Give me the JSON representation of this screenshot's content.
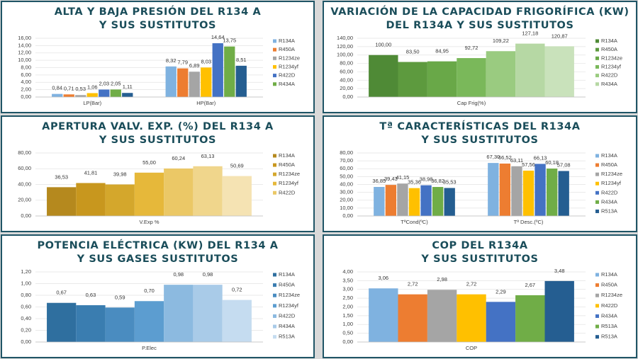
{
  "chart_data": [
    {
      "type": "bar",
      "title": [
        "ALTA Y BAJA PRESIÓN DEL R134 A",
        "Y SUS SUSTITUTOS"
      ],
      "categories": [
        "LP(Bar)",
        "HP(Bar)"
      ],
      "ylim": [
        0,
        16
      ],
      "yticks": [
        {
          "value": 0,
          "label": "0,00"
        },
        {
          "value": 2,
          "label": "2,00"
        },
        {
          "value": 4,
          "label": "4,00"
        },
        {
          "value": 6,
          "label": "6,00"
        },
        {
          "value": 8,
          "label": "8,00"
        },
        {
          "value": 10,
          "label": "10,00"
        },
        {
          "value": 12,
          "label": "12,00"
        },
        {
          "value": 14,
          "label": "14,00"
        },
        {
          "value": 16,
          "label": "16,00"
        }
      ],
      "grid": true,
      "series": [
        {
          "name": "R134A",
          "color": "#7fb2e0",
          "values": [
            0.84,
            8.32
          ],
          "value_labels": [
            "0,84",
            "8,32"
          ]
        },
        {
          "name": "R450A",
          "color": "#ed7d31",
          "values": [
            0.71,
            7.79
          ],
          "value_labels": [
            "0,71",
            "7,79"
          ]
        },
        {
          "name": "R1234ze",
          "color": "#a5a5a5",
          "values": [
            0.53,
            6.89
          ],
          "value_labels": [
            "0,53",
            "6,89"
          ]
        },
        {
          "name": "R1234yf",
          "color": "#ffc000",
          "values": [
            1.06,
            8.03
          ],
          "value_labels": [
            "1,06",
            "8,03"
          ]
        },
        {
          "name": "R422D",
          "color": "#4472c4",
          "values": [
            2.03,
            14.64
          ],
          "value_labels": [
            "2,03",
            "14,64"
          ]
        },
        {
          "name": "R434A",
          "color": "#70ad47",
          "values": [
            2.05,
            13.75
          ],
          "value_labels": [
            "2,05",
            "13,75"
          ]
        },
        {
          "name": null,
          "color": "#255e91",
          "values": [
            1.11,
            8.51
          ],
          "value_labels": [
            "1,11",
            "8,51"
          ]
        }
      ]
    },
    {
      "type": "bar",
      "title": [
        "VARIACIÓN DE LA CAPACIDAD FRIGORÍFICA (KW)",
        "DEL R134A Y SUS SUSTITUTOS"
      ],
      "categories": [
        "Cap Frig(%)"
      ],
      "ylim": [
        0,
        140
      ],
      "yticks": [
        {
          "value": 0,
          "label": "0,00"
        },
        {
          "value": 20,
          "label": "20,00"
        },
        {
          "value": 40,
          "label": "40,00"
        },
        {
          "value": 60,
          "label": "60,00"
        },
        {
          "value": 80,
          "label": "80,00"
        },
        {
          "value": 100,
          "label": "100,00"
        },
        {
          "value": 120,
          "label": "120,00"
        },
        {
          "value": 140,
          "label": "140,00"
        }
      ],
      "grid": true,
      "series": [
        {
          "name": "R134A",
          "color": "#4f8a36",
          "values": [
            100.0
          ],
          "value_labels": [
            "100,00"
          ]
        },
        {
          "name": "R450A",
          "color": "#5d9a3e",
          "values": [
            83.5
          ],
          "value_labels": [
            "83,50"
          ]
        },
        {
          "name": "R1234ze",
          "color": "#69a848",
          "values": [
            84.95
          ],
          "value_labels": [
            "84,95"
          ]
        },
        {
          "name": "R1234yf",
          "color": "#7ab85a",
          "values": [
            92.72
          ],
          "value_labels": [
            "92,72"
          ]
        },
        {
          "name": "R422D",
          "color": "#9acb80",
          "values": [
            109.22
          ],
          "value_labels": [
            "109,22"
          ]
        },
        {
          "name": "R434A",
          "color": "#b6d8a4",
          "values": [
            127.18
          ],
          "value_labels": [
            "127,18"
          ]
        },
        {
          "name": null,
          "color": "#c9e2bb",
          "values": [
            120.87
          ],
          "value_labels": [
            "120,87"
          ]
        }
      ]
    },
    {
      "type": "bar",
      "title": [
        "APERTURA VALV. EXP. (%) DEL R134 A",
        "Y SUS SUSTITUTOS"
      ],
      "categories": [
        "V.Exp %"
      ],
      "ylim": [
        0,
        80
      ],
      "yticks": [
        {
          "value": 0,
          "label": "0,00"
        },
        {
          "value": 20,
          "label": "20,00"
        },
        {
          "value": 40,
          "label": "40,00"
        },
        {
          "value": 60,
          "label": "60,00"
        },
        {
          "value": 80,
          "label": "80,00"
        }
      ],
      "grid": true,
      "series": [
        {
          "name": "R134A",
          "color": "#b5891e",
          "values": [
            36.53
          ],
          "value_labels": [
            "36,53"
          ]
        },
        {
          "name": "R450A",
          "color": "#c8971e",
          "values": [
            41.81
          ],
          "value_labels": [
            "41,81"
          ]
        },
        {
          "name": "R1234ze",
          "color": "#d4a72c",
          "values": [
            39.98
          ],
          "value_labels": [
            "39,98"
          ]
        },
        {
          "name": "R1234yf",
          "color": "#e6b83a",
          "values": [
            55.0
          ],
          "value_labels": [
            "55,00"
          ]
        },
        {
          "name": "R422D",
          "color": "#ebc866",
          "values": [
            60.24
          ],
          "value_labels": [
            "60,24"
          ]
        },
        {
          "name": null,
          "color": "#f0d68c",
          "values": [
            63.13
          ],
          "value_labels": [
            "63,13"
          ]
        },
        {
          "name": null,
          "color": "#f5e3b3",
          "values": [
            50.69
          ],
          "value_labels": [
            "50,69"
          ]
        }
      ]
    },
    {
      "type": "bar",
      "title": [
        "Tª CARACTERÍSTICAS DEL R134A",
        "Y SUS SUSTITUTOS"
      ],
      "categories": [
        "TªCond(ºC)",
        "Tª Desc.(ºC)"
      ],
      "ylim": [
        0,
        80
      ],
      "yticks": [
        {
          "value": 0,
          "label": "0,00"
        },
        {
          "value": 10,
          "label": "10,00"
        },
        {
          "value": 20,
          "label": "20,00"
        },
        {
          "value": 30,
          "label": "30,00"
        },
        {
          "value": 40,
          "label": "40,00"
        },
        {
          "value": 50,
          "label": "50,00"
        },
        {
          "value": 60,
          "label": "60,00"
        },
        {
          "value": 70,
          "label": "70,00"
        },
        {
          "value": 80,
          "label": "80,00"
        }
      ],
      "grid": true,
      "series": [
        {
          "name": "R134A",
          "color": "#7fb2e0",
          "values": [
            36.85,
            67.3
          ],
          "value_labels": [
            "36,85",
            "67,30"
          ]
        },
        {
          "name": "R450A",
          "color": "#ed7d31",
          "values": [
            39.43,
            66.52
          ],
          "value_labels": [
            "39,43",
            "66,52"
          ]
        },
        {
          "name": "R1234ze",
          "color": "#a5a5a5",
          "values": [
            41.15,
            63.11
          ],
          "value_labels": [
            "41,15",
            "63,11"
          ]
        },
        {
          "name": "R1234yf",
          "color": "#ffc000",
          "values": [
            35.36,
            57.56
          ],
          "value_labels": [
            "35,36",
            "57,56"
          ]
        },
        {
          "name": "R422D",
          "color": "#4472c4",
          "values": [
            38.98,
            66.13
          ],
          "value_labels": [
            "38,98",
            "66,13"
          ]
        },
        {
          "name": "R434A",
          "color": "#70ad47",
          "values": [
            36.82,
            60.18
          ],
          "value_labels": [
            "36,82",
            "60,18"
          ]
        },
        {
          "name": "R513A",
          "color": "#255e91",
          "values": [
            35.53,
            57.08
          ],
          "value_labels": [
            "35,53",
            "57,08"
          ]
        }
      ]
    },
    {
      "type": "bar",
      "title": [
        "POTENCIA ELÉCTRICA (KW) DEL R134 A",
        "Y SUS GASES SUSTITUTOS"
      ],
      "categories": [
        "P.Elec"
      ],
      "ylim": [
        0,
        1.2
      ],
      "yticks": [
        {
          "value": 0,
          "label": "0,00"
        },
        {
          "value": 0.2,
          "label": "0,20"
        },
        {
          "value": 0.4,
          "label": "0,40"
        },
        {
          "value": 0.6,
          "label": "0,60"
        },
        {
          "value": 0.8,
          "label": "0,80"
        },
        {
          "value": 1.0,
          "label": "1,00"
        },
        {
          "value": 1.2,
          "label": "1,20"
        }
      ],
      "grid": true,
      "series": [
        {
          "name": "R134A",
          "color": "#2f6f9f",
          "values": [
            0.67
          ],
          "value_labels": [
            "0,67"
          ]
        },
        {
          "name": "R450A",
          "color": "#3a7db0",
          "values": [
            0.63
          ],
          "value_labels": [
            "0,63"
          ]
        },
        {
          "name": "R1234ze",
          "color": "#4a8cc0",
          "values": [
            0.59
          ],
          "value_labels": [
            "0,59"
          ]
        },
        {
          "name": "R1234yf",
          "color": "#5c9dd0",
          "values": [
            0.7
          ],
          "value_labels": [
            "0,70"
          ]
        },
        {
          "name": "R422D",
          "color": "#8cbae0",
          "values": [
            0.98
          ],
          "value_labels": [
            "0,98"
          ]
        },
        {
          "name": "R434A",
          "color": "#a9cbe8",
          "values": [
            0.98
          ],
          "value_labels": [
            "0,98"
          ]
        },
        {
          "name": "R513A",
          "color": "#c5dcf0",
          "values": [
            0.72
          ],
          "value_labels": [
            "0,72"
          ]
        }
      ]
    },
    {
      "type": "bar",
      "title": [
        "COP DEL R134A",
        "Y SUS SUSTITUTOS"
      ],
      "categories": [
        "COP"
      ],
      "ylim": [
        0,
        4
      ],
      "yticks": [
        {
          "value": 0,
          "label": "0,00"
        },
        {
          "value": 0.5,
          "label": "0,50"
        },
        {
          "value": 1.0,
          "label": "1,00"
        },
        {
          "value": 1.5,
          "label": "1,50"
        },
        {
          "value": 2.0,
          "label": "2,00"
        },
        {
          "value": 2.5,
          "label": "2,50"
        },
        {
          "value": 3.0,
          "label": "3,00"
        },
        {
          "value": 3.5,
          "label": "3,50"
        },
        {
          "value": 4.0,
          "label": "4,00"
        }
      ],
      "grid": true,
      "series": [
        {
          "name": "R134A",
          "color": "#7fb2e0",
          "values": [
            3.06
          ],
          "value_labels": [
            "3,06"
          ]
        },
        {
          "name": "R450A",
          "color": "#ed7d31",
          "values": [
            2.72
          ],
          "value_labels": [
            "2,72"
          ]
        },
        {
          "name": "R1234ze",
          "color": "#a5a5a5",
          "values": [
            2.98
          ],
          "value_labels": [
            "2,98"
          ]
        },
        {
          "name": "R422D",
          "color": "#ffc000",
          "values": [
            2.72
          ],
          "value_labels": [
            "2,72"
          ]
        },
        {
          "name": "R434A",
          "color": "#4472c4",
          "values": [
            2.29
          ],
          "value_labels": [
            "2,29"
          ]
        },
        {
          "name": "R513A",
          "color": "#70ad47",
          "values": [
            2.67
          ],
          "value_labels": [
            "2,67"
          ]
        },
        {
          "name": "R513A",
          "color": "#255e91",
          "values": [
            3.48
          ],
          "value_labels": [
            "3,48"
          ]
        }
      ]
    }
  ]
}
